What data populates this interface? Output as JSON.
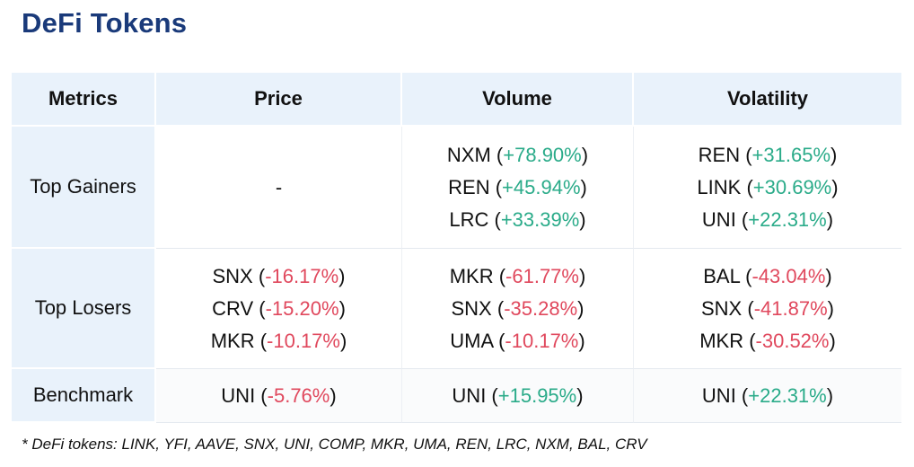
{
  "title": "DeFi Tokens",
  "colors": {
    "title": "#1a3a7a",
    "header_bg": "#e9f2fb",
    "positive": "#2aab89",
    "negative": "#e0485d"
  },
  "headers": [
    "Metrics",
    "Price",
    "Volume",
    "Volatility"
  ],
  "rows": [
    {
      "label": "Top Gainers",
      "cells": [
        {
          "placeholder": "-",
          "entries": []
        },
        {
          "entries": [
            {
              "token": "NXM",
              "change": "+78.90%",
              "sign": "pos"
            },
            {
              "token": "REN",
              "change": "+45.94%",
              "sign": "pos"
            },
            {
              "token": "LRC",
              "change": "+33.39%",
              "sign": "pos"
            }
          ]
        },
        {
          "entries": [
            {
              "token": "REN",
              "change": "+31.65%",
              "sign": "pos"
            },
            {
              "token": "LINK",
              "change": "+30.69%",
              "sign": "pos"
            },
            {
              "token": "UNI",
              "change": "+22.31%",
              "sign": "pos"
            }
          ]
        }
      ]
    },
    {
      "label": "Top Losers",
      "cells": [
        {
          "entries": [
            {
              "token": "SNX",
              "change": "-16.17%",
              "sign": "neg"
            },
            {
              "token": "CRV",
              "change": "-15.20%",
              "sign": "neg"
            },
            {
              "token": "MKR",
              "change": "-10.17%",
              "sign": "neg"
            }
          ]
        },
        {
          "entries": [
            {
              "token": "MKR",
              "change": "-61.77%",
              "sign": "neg"
            },
            {
              "token": "SNX",
              "change": "-35.28%",
              "sign": "neg"
            },
            {
              "token": "UMA",
              "change": "-10.17%",
              "sign": "neg"
            }
          ]
        },
        {
          "entries": [
            {
              "token": "BAL",
              "change": "-43.04%",
              "sign": "neg"
            },
            {
              "token": "SNX",
              "change": "-41.87%",
              "sign": "neg"
            },
            {
              "token": "MKR",
              "change": "-30.52%",
              "sign": "neg"
            }
          ]
        }
      ]
    },
    {
      "label": "Benchmark",
      "cells": [
        {
          "entries": [
            {
              "token": "UNI",
              "change": "-5.76%",
              "sign": "neg"
            }
          ]
        },
        {
          "entries": [
            {
              "token": "UNI",
              "change": "+15.95%",
              "sign": "pos"
            }
          ]
        },
        {
          "entries": [
            {
              "token": "UNI",
              "change": "+22.31%",
              "sign": "pos"
            }
          ]
        }
      ]
    }
  ],
  "footnote": "* DeFi tokens: LINK, YFI, AAVE, SNX, UNI, COMP, MKR, UMA, REN, LRC, NXM, BAL, CRV"
}
